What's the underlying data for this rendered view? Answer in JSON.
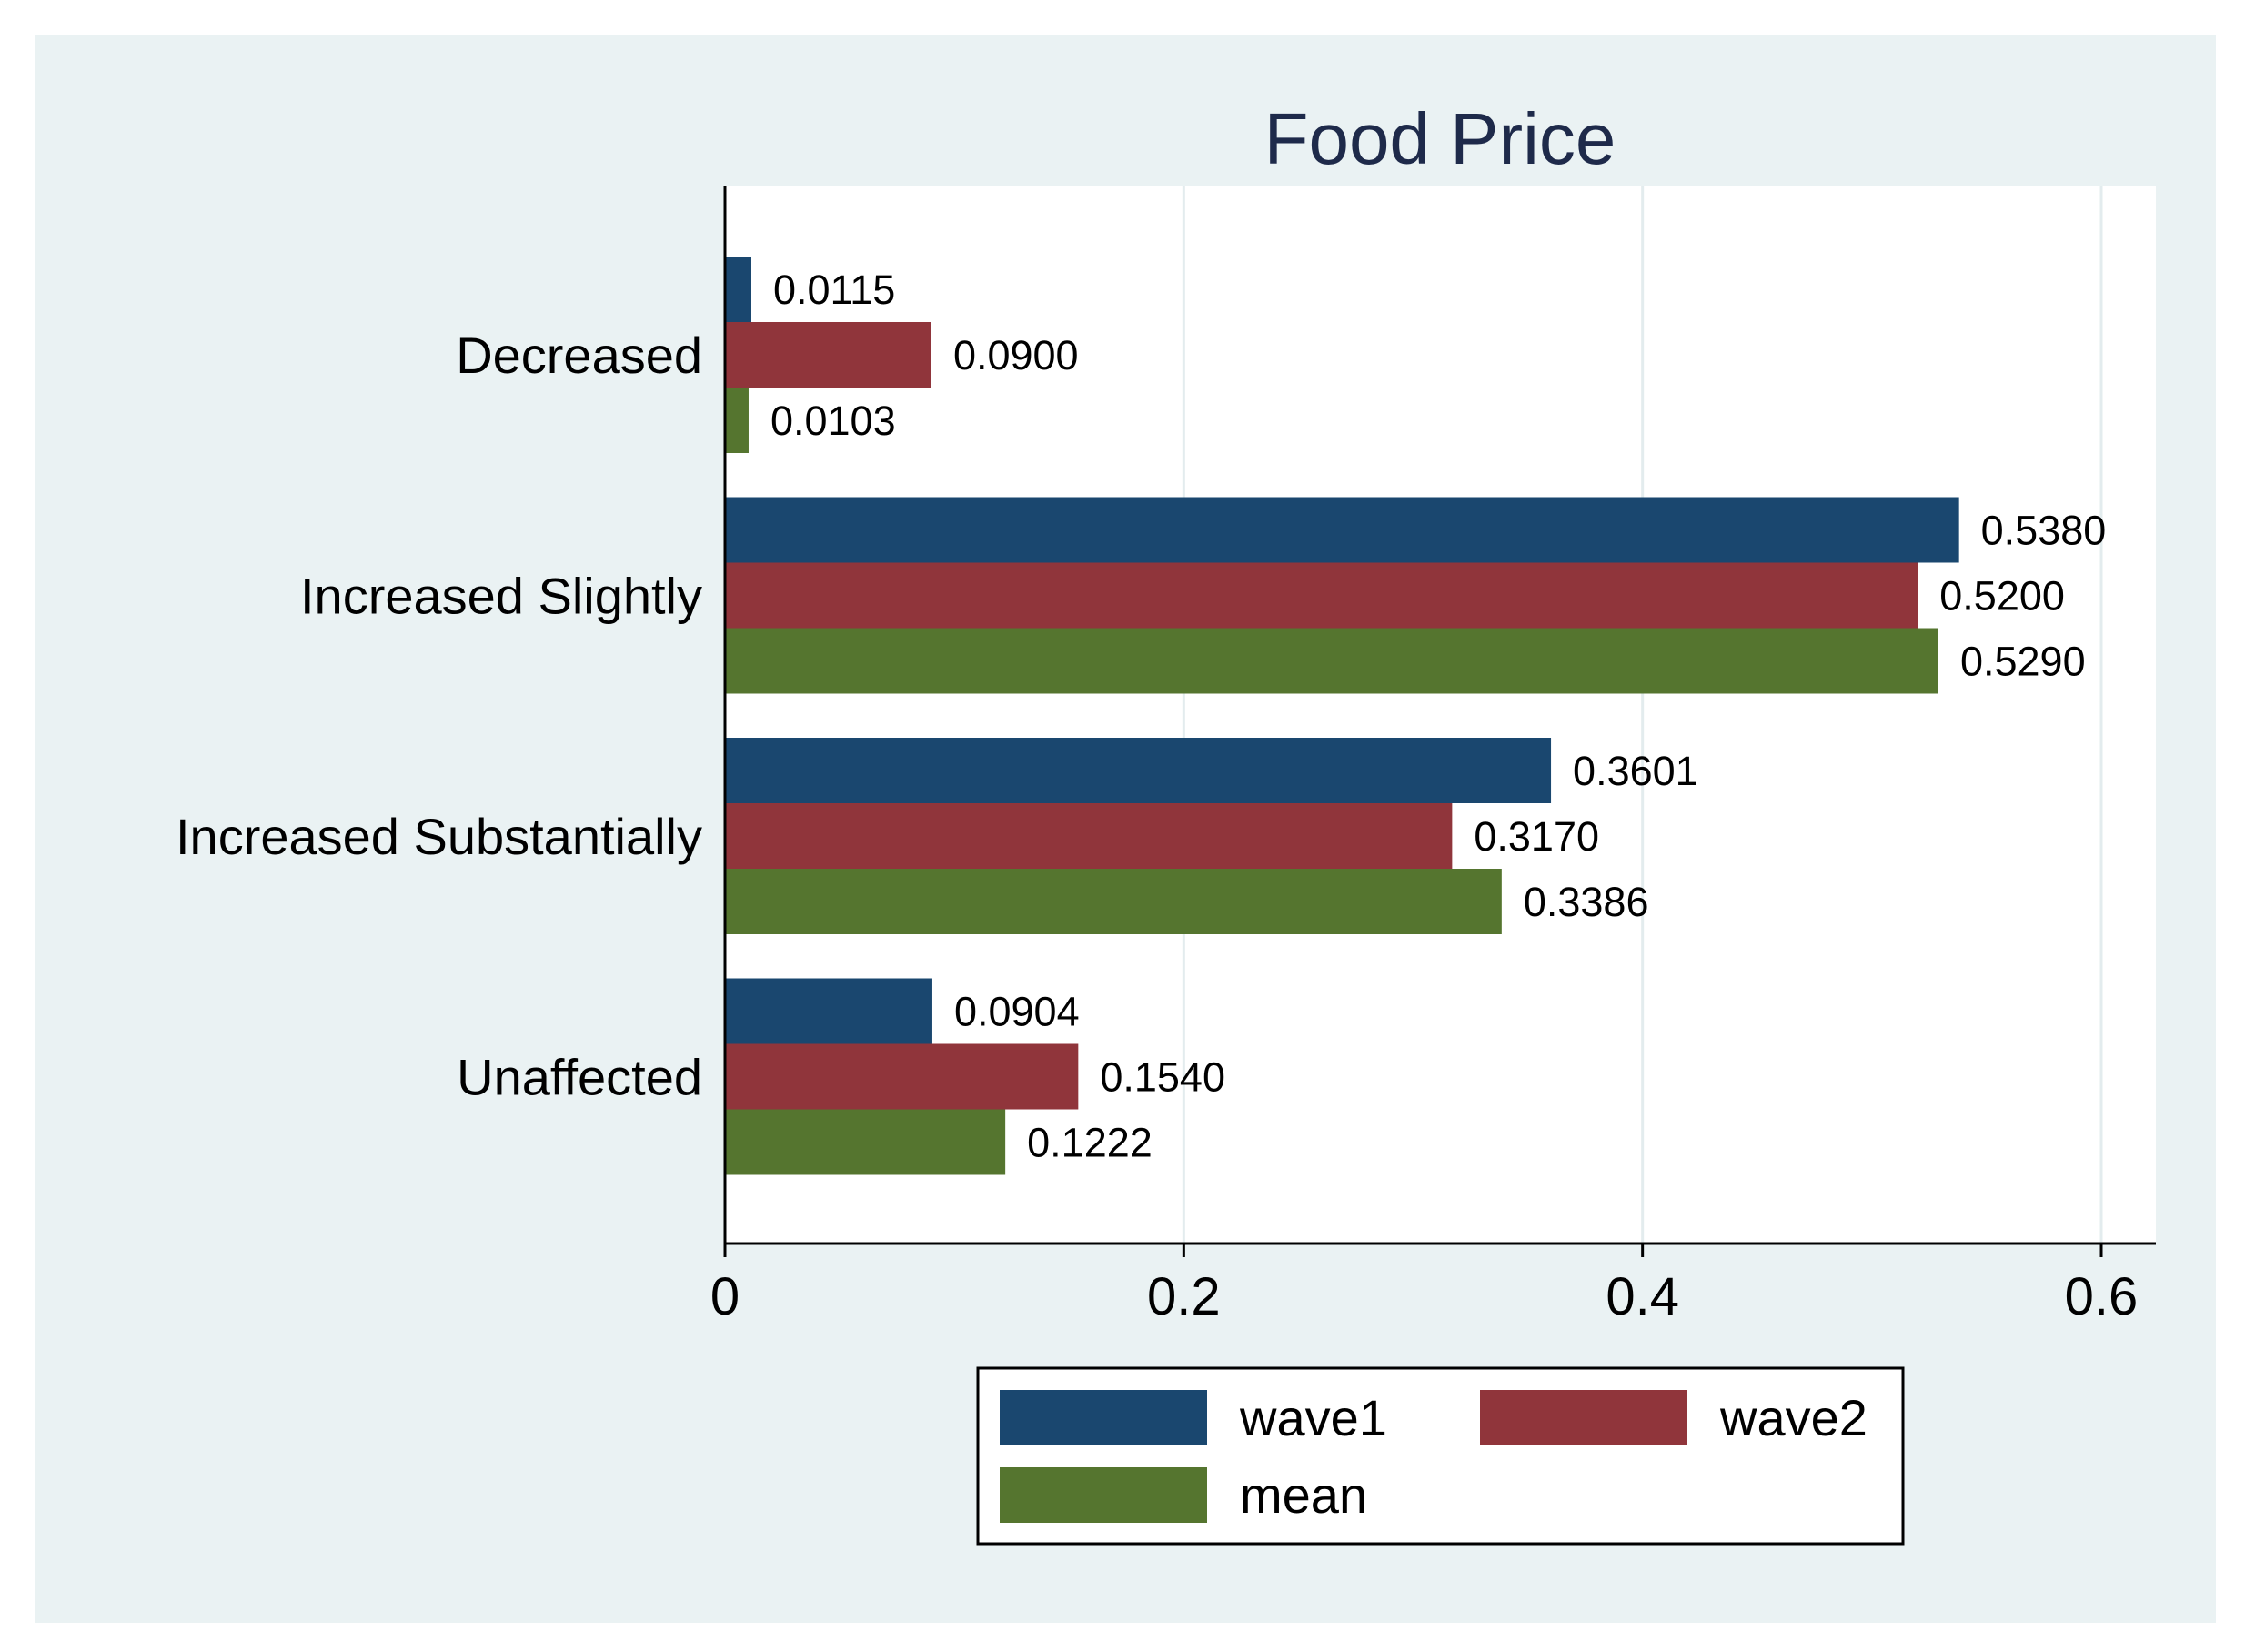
{
  "chart_data": {
    "type": "bar",
    "orientation": "horizontal",
    "title": "Food Price",
    "categories": [
      "Decreased",
      "Increased Slightly",
      "Increased Substantially",
      "Unaffected"
    ],
    "series": [
      {
        "name": "wave1",
        "color": "#1a476f",
        "values": [
          0.0115,
          0.538,
          0.3601,
          0.0904
        ],
        "labels": [
          "0.0115",
          "0.5380",
          "0.3601",
          "0.0904"
        ]
      },
      {
        "name": "wave2",
        "color": "#90353b",
        "values": [
          0.09,
          0.52,
          0.317,
          0.154
        ],
        "labels": [
          "0.0900",
          "0.5200",
          "0.3170",
          "0.1540"
        ]
      },
      {
        "name": "mean",
        "color": "#55752f",
        "values": [
          0.0103,
          0.529,
          0.3386,
          0.1222
        ],
        "labels": [
          "0.0103",
          "0.5290",
          "0.3386",
          "0.1222"
        ]
      }
    ],
    "xlim": [
      0,
      0.6
    ],
    "xticks": [
      0,
      0.2,
      0.4,
      0.6
    ],
    "xtick_labels": [
      "0",
      "0.2",
      "0.4",
      "0.6"
    ],
    "grid": true,
    "legend_position": "bottom"
  }
}
